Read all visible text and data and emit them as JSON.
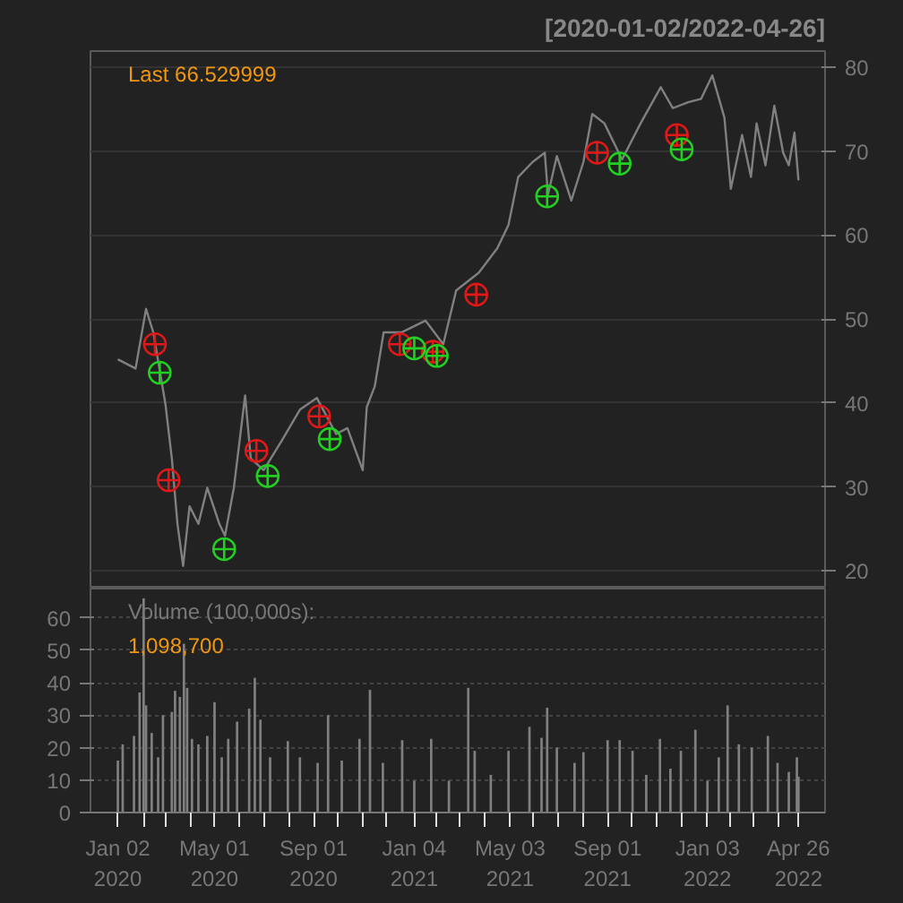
{
  "chart_data": [
    {
      "type": "line",
      "title": "[2020-01-02/2022-04-26]",
      "annotations": [
        "Last 66.529999"
      ],
      "xlim": [
        "2019-11-29",
        "2022-05-29"
      ],
      "ylim": [
        17.9,
        81.9
      ],
      "yticks": [
        20,
        30,
        40,
        50,
        60,
        70,
        80
      ],
      "tick_labels": "y",
      "grid": "y",
      "series": [
        {
          "color": "#808080",
          "x": [
            "2020-01-02",
            "2020-01-24",
            "2020-02-06",
            "2020-02-15",
            "2020-03-01",
            "2020-03-09",
            "2020-03-16",
            "2020-03-23",
            "2020-03-31",
            "2020-04-11",
            "2020-04-22",
            "2020-05-07",
            "2020-05-14",
            "2020-05-25",
            "2020-06-08",
            "2020-06-15",
            "2020-07-01",
            "2020-07-24",
            "2020-08-15",
            "2020-09-05",
            "2020-09-29",
            "2020-10-13",
            "2020-11-01",
            "2020-11-06",
            "2020-11-16",
            "2020-11-27",
            "2020-12-19",
            "2021-01-18",
            "2021-02-09",
            "2021-02-25",
            "2021-03-25",
            "2021-04-17",
            "2021-05-01",
            "2021-05-13",
            "2021-05-31",
            "2021-06-15",
            "2021-06-19",
            "2021-06-30",
            "2021-07-18",
            "2021-08-02",
            "2021-08-13",
            "2021-08-28",
            "2021-09-19",
            "2021-10-12",
            "2021-11-06",
            "2021-11-21",
            "2021-12-10",
            "2021-12-26",
            "2022-01-09",
            "2022-01-24",
            "2022-02-01",
            "2022-02-15",
            "2022-02-26",
            "2022-03-05",
            "2022-03-16",
            "2022-03-27",
            "2022-04-07",
            "2022-04-14",
            "2022-04-21",
            "2022-04-26"
          ],
          "values": [
            45.2,
            44.1,
            51.2,
            48.4,
            39.9,
            33.4,
            25.6,
            20.6,
            27.7,
            25.6,
            29.9,
            25.6,
            24.2,
            29.9,
            40.9,
            33.4,
            32.0,
            35.6,
            39.2,
            40.6,
            36.3,
            37.0,
            32.0,
            39.5,
            42.0,
            48.4,
            48.4,
            49.8,
            47.0,
            53.4,
            55.5,
            58.4,
            61.2,
            66.9,
            68.7,
            69.8,
            64.8,
            69.4,
            64.1,
            68.7,
            74.4,
            73.3,
            69.0,
            73.3,
            77.6,
            75.1,
            75.8,
            76.2,
            79.0,
            74.0,
            65.5,
            71.9,
            66.9,
            73.3,
            68.3,
            75.4,
            69.8,
            68.3,
            72.2,
            66.5
          ]
        },
        {
          "type": "scatter",
          "marker": "circle",
          "color": "#e01818",
          "x": [
            "2020-02-17",
            "2020-03-05",
            "2020-06-22",
            "2020-09-08",
            "2020-12-17",
            "2021-01-27",
            "2021-03-22",
            "2021-08-19",
            "2021-11-26"
          ],
          "values": [
            47.0,
            30.8,
            34.3,
            38.4,
            47.0,
            46.1,
            52.9,
            69.8,
            71.9
          ]
        },
        {
          "type": "scatter",
          "marker": "circle",
          "color": "#22d022",
          "x": [
            "2020-02-23",
            "2020-05-13",
            "2020-07-06",
            "2020-09-21",
            "2021-01-04",
            "2021-02-01",
            "2021-06-18",
            "2021-09-16",
            "2021-12-02"
          ],
          "values": [
            43.6,
            22.6,
            31.3,
            35.7,
            46.5,
            45.6,
            64.6,
            68.5,
            70.2
          ]
        }
      ]
    },
    {
      "type": "bar",
      "annotations": [
        "Volume (100,000s):",
        "1,098,700"
      ],
      "xlim": [
        "2019-11-29",
        "2022-05-29"
      ],
      "ylim": [
        0,
        69
      ],
      "yticks": [
        0,
        10,
        20,
        30,
        40,
        50,
        60
      ],
      "grid": "y",
      "color": "#808080",
      "xticks": [
        {
          "value": "2020-01-02",
          "label": "Jan 02\n2020"
        },
        {
          "value": "2020-02-03",
          "label": null
        },
        {
          "value": "2020-03-02",
          "label": null
        },
        {
          "value": "2020-04-01",
          "label": null
        },
        {
          "value": "2020-05-01",
          "label": "May 01\n2020"
        },
        {
          "value": "2020-06-01",
          "label": null
        },
        {
          "value": "2020-07-01",
          "label": null
        },
        {
          "value": "2020-08-03",
          "label": null
        },
        {
          "value": "2020-09-01",
          "label": "Sep 01\n2020"
        },
        {
          "value": "2020-10-01",
          "label": null
        },
        {
          "value": "2020-11-02",
          "label": null
        },
        {
          "value": "2020-12-01",
          "label": null
        },
        {
          "value": "2021-01-04",
          "label": "Jan 04\n2021"
        },
        {
          "value": "2021-02-01",
          "label": null
        },
        {
          "value": "2021-03-01",
          "label": null
        },
        {
          "value": "2021-04-01",
          "label": null
        },
        {
          "value": "2021-05-03",
          "label": "May 03\n2021"
        },
        {
          "value": "2021-06-01",
          "label": null
        },
        {
          "value": "2021-07-01",
          "label": null
        },
        {
          "value": "2021-08-02",
          "label": null
        },
        {
          "value": "2021-09-01",
          "label": "Sep 01\n2021"
        },
        {
          "value": "2021-10-01",
          "label": null
        },
        {
          "value": "2021-11-01",
          "label": null
        },
        {
          "value": "2021-12-01",
          "label": null
        },
        {
          "value": "2022-01-03",
          "label": "Jan 03\n2022"
        },
        {
          "value": "2022-02-01",
          "label": null
        },
        {
          "value": "2022-03-01",
          "label": null
        },
        {
          "value": "2022-04-01",
          "label": null
        },
        {
          "value": "2022-04-26",
          "label": "Apr 26\n2022"
        }
      ],
      "x": [
        "2020-01-02",
        "2020-01-08",
        "2020-01-22",
        "2020-01-29",
        "2020-02-03",
        "2020-02-06",
        "2020-02-13",
        "2020-02-21",
        "2020-02-27",
        "2020-03-09",
        "2020-03-13",
        "2020-03-19",
        "2020-03-24",
        "2020-03-28",
        "2020-04-03",
        "2020-04-11",
        "2020-04-22",
        "2020-05-01",
        "2020-05-10",
        "2020-05-18",
        "2020-05-29",
        "2020-06-13",
        "2020-06-20",
        "2020-06-27",
        "2020-07-09",
        "2020-07-31",
        "2020-08-15",
        "2020-09-06",
        "2020-09-19",
        "2020-10-06",
        "2020-10-28",
        "2020-11-10",
        "2020-11-26",
        "2020-12-20",
        "2021-01-04",
        "2021-01-25",
        "2021-02-16",
        "2021-03-12",
        "2021-03-20",
        "2021-04-09",
        "2021-05-01",
        "2021-05-27",
        "2021-06-11",
        "2021-06-18",
        "2021-06-30",
        "2021-07-22",
        "2021-08-02",
        "2021-09-01",
        "2021-09-16",
        "2021-10-02",
        "2021-10-19",
        "2021-11-05",
        "2021-11-18",
        "2021-12-01",
        "2021-12-19",
        "2022-01-03",
        "2022-01-17",
        "2022-01-28",
        "2022-02-11",
        "2022-02-27",
        "2022-03-19",
        "2022-03-31",
        "2022-04-14",
        "2022-04-24",
        "2022-04-26"
      ],
      "values": [
        16,
        21,
        23.6,
        37,
        66,
        33,
        24.5,
        17,
        30,
        31,
        37.5,
        35.6,
        52,
        38.4,
        22.7,
        21,
        23.6,
        34,
        17,
        22.7,
        28,
        32,
        41.5,
        28.6,
        17,
        22,
        17,
        15.3,
        30,
        16,
        22.7,
        37.8,
        15.3,
        22.3,
        9.8,
        22.7,
        9.8,
        38.4,
        19,
        11.6,
        19,
        26.4,
        23,
        32.3,
        20,
        15.3,
        18.6,
        22.3,
        22.3,
        19,
        11.6,
        22.7,
        13.5,
        19,
        25.5,
        9.8,
        17,
        33,
        21,
        20,
        23.6,
        15.3,
        12.5,
        17,
        11
      ]
    }
  ]
}
